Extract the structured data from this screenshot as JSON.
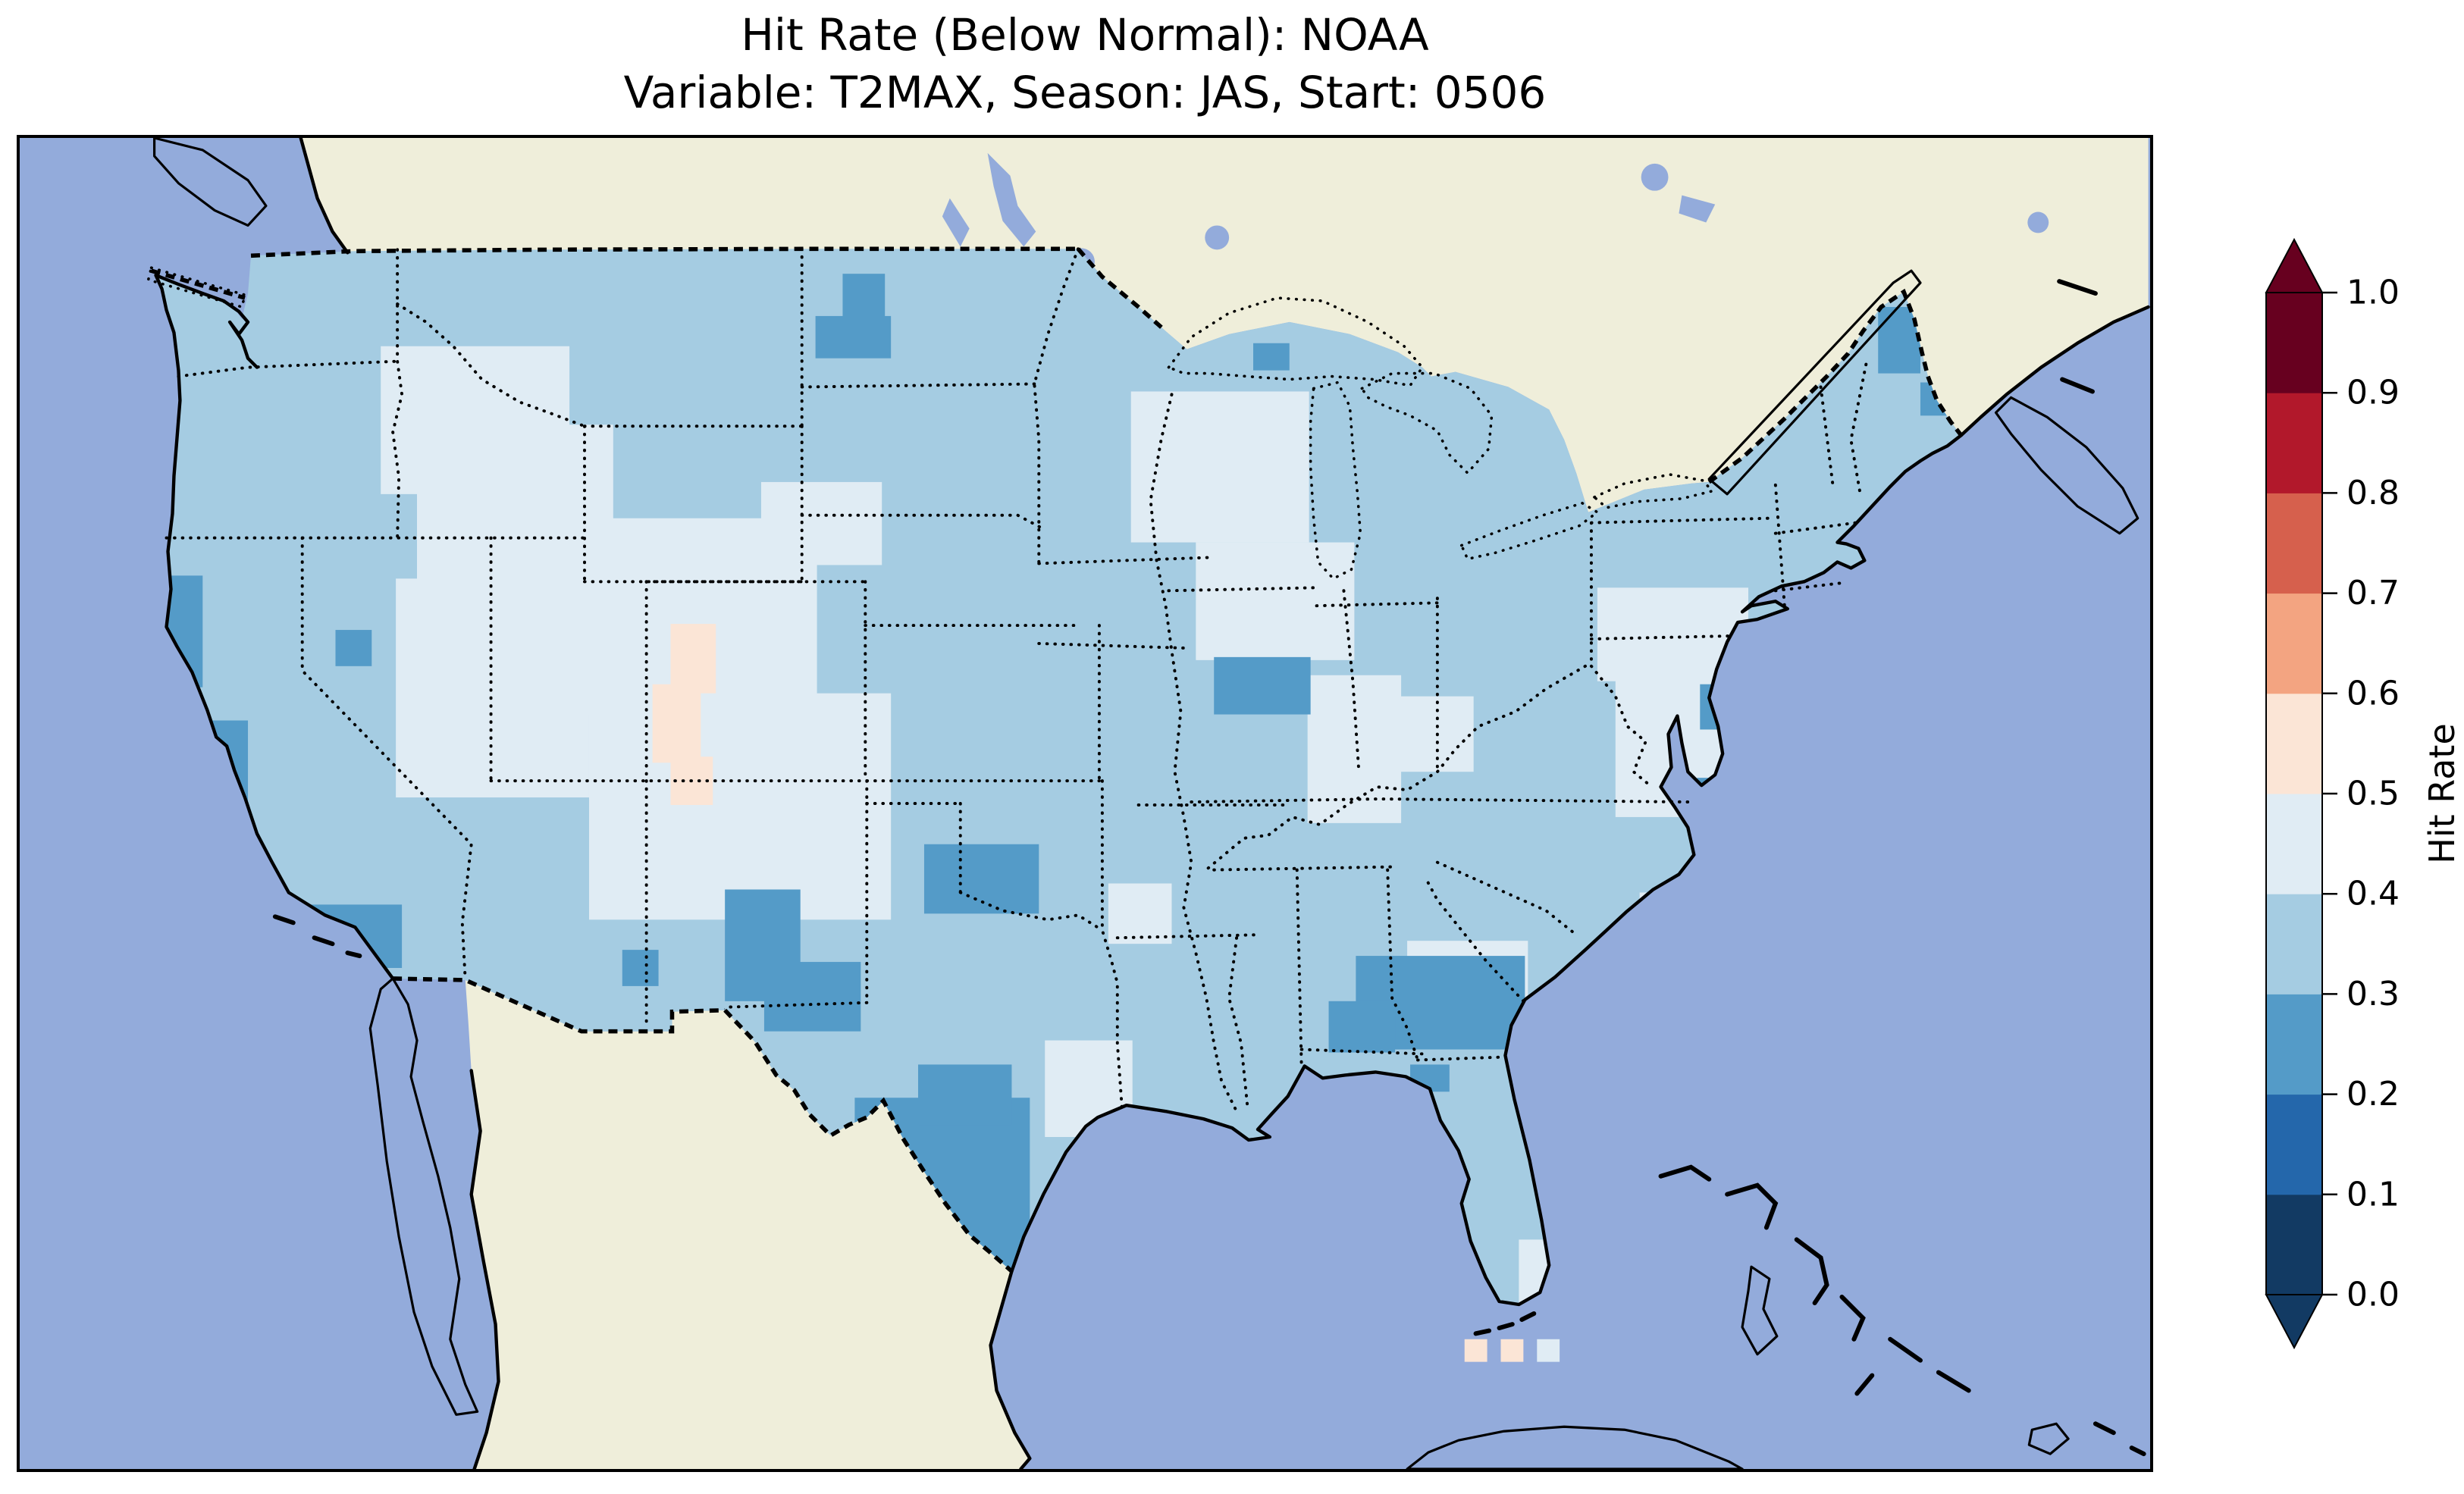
{
  "title": {
    "line1": "Hit Rate (Below Normal): NOAA",
    "line2": "Variable: T2MAX, Season: JAS, Start: 0506"
  },
  "map": {
    "ocean_color": "#93abdb",
    "land_color": "#efeeda",
    "coast_color": "#000000"
  },
  "colorbar": {
    "label": "Hit Rate",
    "ticks": [
      "1.0",
      "0.9",
      "0.8",
      "0.7",
      "0.6",
      "0.5",
      "0.4",
      "0.3",
      "0.2",
      "0.1",
      "0.0"
    ],
    "bin_colors_bottom_to_top": [
      "#123a63",
      "#2467ab",
      "#549bc8",
      "#a5cce2",
      "#e0ecf4",
      "#fbe5d6",
      "#f3a481",
      "#d6604d",
      "#b2182b",
      "#67001f"
    ],
    "extend_colors": {
      "over": "#67001f",
      "under": "#123a63"
    }
  },
  "chart_data": {
    "type": "heatmap",
    "subtype": "gridded-choropleth-map-conus",
    "title": "Hit Rate (Below Normal): NOAA",
    "subtitle": "Variable: T2MAX, Season: JAS, Start: 0506",
    "colorbar_label": "Hit Rate",
    "value_range": [
      0.0,
      1.0
    ],
    "bin_width": 0.1,
    "base_bin": "0.3-0.4",
    "base_fill": "#a5cce2",
    "bin_fill": {
      "0.2-0.3": "#549bc8",
      "0.3-0.4": "#a5cce2",
      "0.4-0.5": "#e0ecf4",
      "0.5-0.6": "#fbe5d6"
    },
    "grid_patches": [
      {
        "bin": "0.4-0.5",
        "region": "east-washington-north-idaho",
        "rects": [
          [
            238,
            138,
            125,
            98
          ]
        ]
      },
      {
        "bin": "0.4-0.5",
        "region": "west-montana-central-idaho",
        "rects": [
          [
            262,
            190,
            130,
            130
          ]
        ]
      },
      {
        "bin": "0.4-0.5",
        "region": "east-nevada-utah",
        "rects": [
          [
            248,
            292,
            128,
            145
          ]
        ]
      },
      {
        "bin": "0.4-0.5",
        "region": "wyoming",
        "rects": [
          [
            352,
            252,
            175,
            130
          ]
        ]
      },
      {
        "bin": "0.4-0.5",
        "region": "colorado-nebraska-kansas",
        "rects": [
          [
            376,
            368,
            200,
            150
          ]
        ]
      },
      {
        "bin": "0.4-0.5",
        "region": "central-south-dakota",
        "rects": [
          [
            490,
            228,
            80,
            55
          ]
        ]
      },
      {
        "bin": "0.4-0.5",
        "region": "minnesota",
        "rects": [
          [
            735,
            168,
            118,
            100
          ]
        ]
      },
      {
        "bin": "0.4-0.5",
        "region": "wisconsin",
        "rects": [
          [
            778,
            268,
            105,
            78
          ]
        ]
      },
      {
        "bin": "0.4-0.5",
        "region": "lower-michigan",
        "rects": [
          [
            852,
            356,
            62,
            98
          ]
        ]
      },
      {
        "bin": "0.4-0.5",
        "region": "west-texas-pecos",
        "rects": [
          [
            466,
            692,
            48,
            72
          ]
        ]
      },
      {
        "bin": "0.4-0.5",
        "region": "arkansas-louisiana",
        "rects": [
          [
            678,
            598,
            58,
            64
          ]
        ]
      },
      {
        "bin": "0.4-0.5",
        "region": "central-missouri",
        "rects": [
          [
            720,
            494,
            42,
            40
          ]
        ]
      },
      {
        "bin": "0.4-0.5",
        "region": "kentucky-tennessee",
        "rects": [
          [
            918,
            532,
            80,
            72
          ]
        ]
      },
      {
        "bin": "0.4-0.5",
        "region": "west-ohio-east-indiana",
        "rects": [
          [
            898,
            370,
            64,
            50
          ]
        ]
      },
      {
        "bin": "0.4-0.5",
        "region": "pennsylvania-south-newyork",
        "rects": [
          [
            1056,
            356,
            118,
            94
          ]
        ]
      },
      {
        "bin": "0.4-0.5",
        "region": "newyork-lakeshore",
        "rects": [
          [
            1044,
            298,
            100,
            62
          ]
        ]
      },
      {
        "bin": "0.4-0.5",
        "region": "west-virginia",
        "rects": [
          [
            1072,
            500,
            34,
            38
          ]
        ]
      },
      {
        "bin": "0.4-0.5",
        "region": "south-carolina-coast",
        "rects": [
          [
            1026,
            590,
            34,
            28
          ]
        ]
      },
      {
        "bin": "0.4-0.5",
        "region": "south-florida",
        "rects": [
          [
            992,
            730,
            40,
            42
          ]
        ]
      },
      {
        "bin": "0.2-0.3",
        "region": "north-california-coast",
        "rects": [
          [
            58,
            290,
            62,
            74
          ]
        ]
      },
      {
        "bin": "0.2-0.3",
        "region": "central-california-coast",
        "rects": [
          [
            92,
            386,
            58,
            60
          ]
        ]
      },
      {
        "bin": "0.2-0.3",
        "region": "southern-california-coast",
        "rects": [
          [
            178,
            508,
            74,
            42
          ]
        ]
      },
      {
        "bin": "0.2-0.3",
        "region": "northwest-nevada-cell",
        "rects": [
          [
            208,
            326,
            24,
            24
          ]
        ]
      },
      {
        "bin": "0.2-0.3",
        "region": "south-oregon-coast",
        "rects": [
          [
            52,
            264,
            34,
            30
          ]
        ]
      },
      {
        "bin": "0.2-0.3",
        "region": "north-dakota",
        "rects": [
          [
            544,
            90,
            28,
            46
          ],
          [
            526,
            118,
            50,
            28
          ]
        ]
      },
      {
        "bin": "0.2-0.3",
        "region": "central-illinois",
        "rects": [
          [
            790,
            344,
            64,
            38
          ]
        ]
      },
      {
        "bin": "0.2-0.3",
        "region": "upper-peninsula-shore-cell",
        "rects": [
          [
            816,
            136,
            24,
            18
          ]
        ]
      },
      {
        "bin": "0.2-0.3",
        "region": "west-new-mexico",
        "rects": [
          [
            466,
            498,
            50,
            74
          ],
          [
            492,
            546,
            64,
            46
          ]
        ]
      },
      {
        "bin": "0.2-0.3",
        "region": "east-arizona-cell",
        "rects": [
          [
            398,
            538,
            24,
            24
          ]
        ]
      },
      {
        "bin": "0.2-0.3",
        "region": "central-oklahoma",
        "rects": [
          [
            598,
            468,
            76,
            46
          ]
        ]
      },
      {
        "bin": "0.2-0.3",
        "region": "south-texas",
        "rects": [
          [
            552,
            636,
            116,
            130
          ],
          [
            594,
            614,
            62,
            40
          ]
        ]
      },
      {
        "bin": "0.2-0.3",
        "region": "georgia-alabama",
        "rects": [
          [
            884,
            542,
            112,
            62
          ],
          [
            866,
            572,
            44,
            34
          ]
        ]
      },
      {
        "bin": "0.2-0.3",
        "region": "north-maine",
        "rects": [
          [
            1230,
            112,
            28,
            44
          ],
          [
            1258,
            162,
            22,
            22
          ]
        ]
      },
      {
        "bin": "0.2-0.3",
        "region": "new-jersey-coast",
        "rects": [
          [
            1112,
            362,
            16,
            30
          ]
        ]
      },
      {
        "bin": "0.2-0.3",
        "region": "delmarva-coast",
        "rects": [
          [
            1110,
            424,
            18,
            46
          ]
        ]
      },
      {
        "bin": "0.2-0.3",
        "region": "florida-big-bend-cell",
        "rects": [
          [
            920,
            614,
            26,
            18
          ]
        ]
      },
      {
        "bin": "0.5-0.6",
        "region": "colorado-nebraska-peach-snake",
        "rects": [
          [
            430,
            322,
            30,
            46
          ],
          [
            418,
            362,
            32,
            52
          ],
          [
            430,
            410,
            28,
            32
          ]
        ]
      },
      {
        "bin": "0.5-0.6",
        "region": "offshore-florida-keys-cells",
        "clip": false,
        "rects": [
          [
            956,
            796,
            15,
            15
          ],
          [
            980,
            796,
            15,
            15
          ]
        ]
      },
      {
        "bin": "0.4-0.5",
        "region": "offshore-florida-keys-cell",
        "clip": false,
        "rects": [
          [
            1004,
            796,
            15,
            15
          ]
        ]
      }
    ]
  }
}
